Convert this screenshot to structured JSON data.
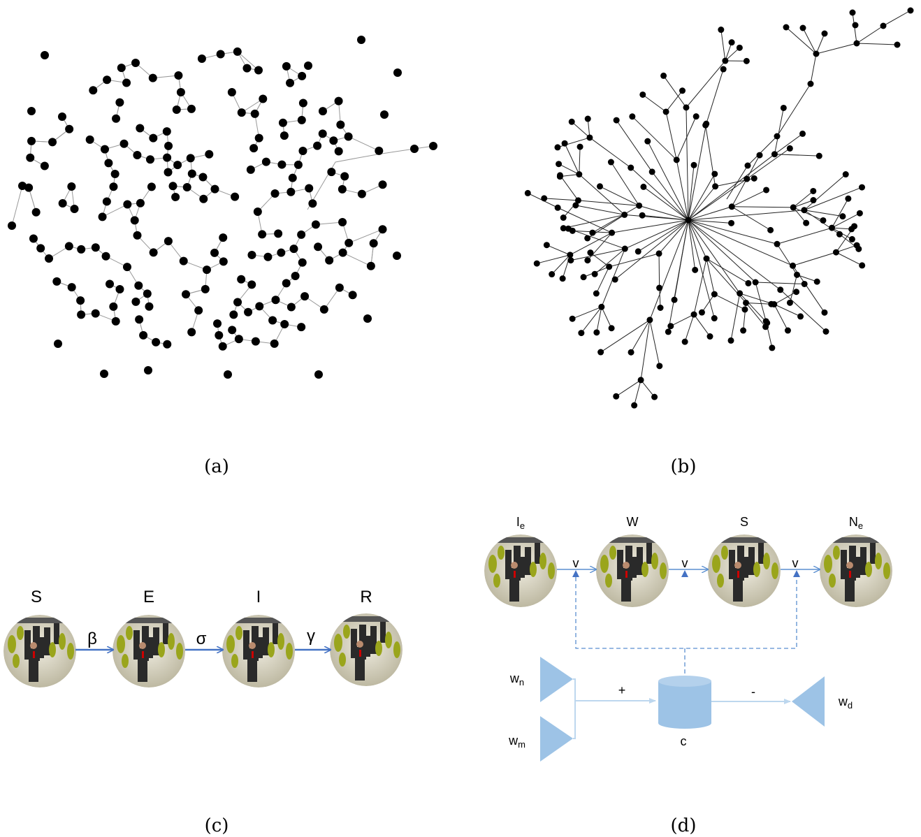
{
  "panels": {
    "a": {
      "label": "(a)"
    },
    "b": {
      "label": "(b)"
    },
    "c": {
      "label": "(c)",
      "states": [
        {
          "label": "S"
        },
        {
          "label": "E"
        },
        {
          "label": "I"
        },
        {
          "label": "R"
        }
      ],
      "rates": [
        "β",
        "σ",
        "γ"
      ]
    },
    "d": {
      "label": "(d)",
      "states": [
        {
          "base": "I",
          "sub": "e"
        },
        {
          "base": "W"
        },
        {
          "base": "S"
        },
        {
          "base": "N",
          "sub": "e"
        }
      ],
      "flow_labels": [
        "v",
        "v",
        "v"
      ],
      "inputs": [
        {
          "base": "w",
          "sub": "n"
        },
        {
          "base": "w",
          "sub": "m"
        }
      ],
      "output": {
        "base": "w",
        "sub": "d"
      },
      "plus": "+",
      "minus": "-",
      "store": "c"
    }
  }
}
